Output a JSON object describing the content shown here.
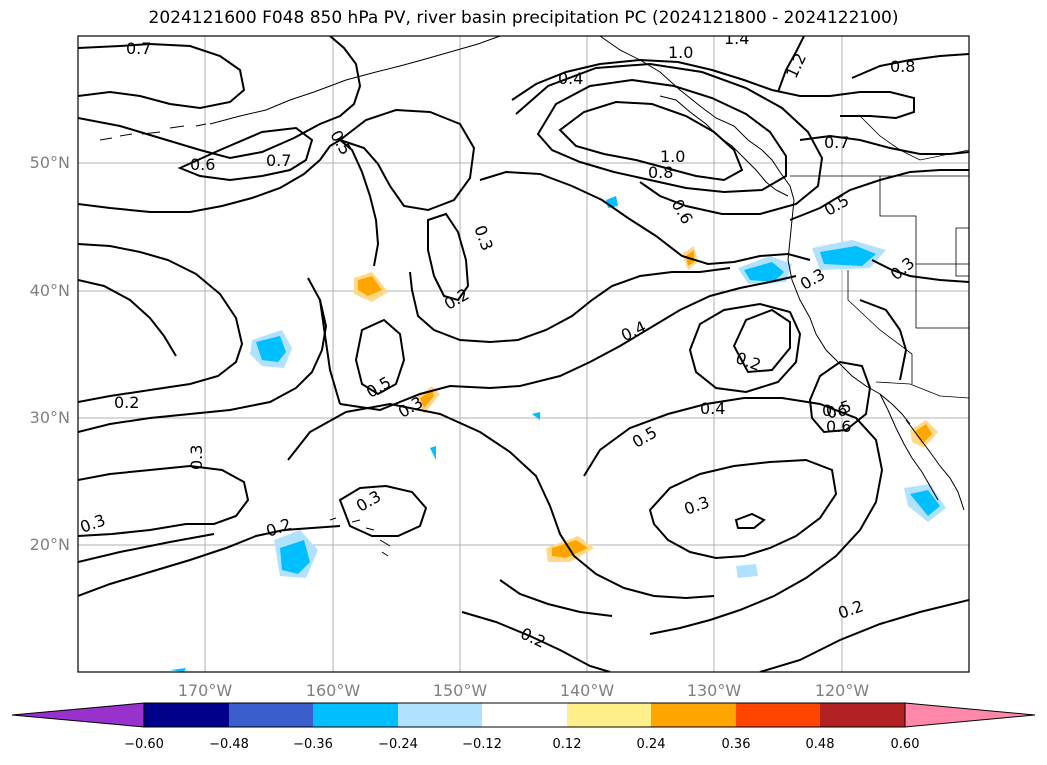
{
  "title": "2024121600 F048 850 hPa PV, river basin precipitation PC (2024121800 - 2024122100)",
  "lat_labels": [
    "50°N",
    "40°N",
    "30°N",
    "20°N"
  ],
  "lon_labels": [
    "170°W",
    "160°W",
    "150°W",
    "140°W",
    "130°W",
    "120°W"
  ],
  "contour_labels": [
    "0.7",
    "0.6",
    "0.7",
    "0.5",
    "0.4",
    "1.0",
    "1.4",
    "1.2",
    "0.8",
    "0.7",
    "1.0",
    "0.8",
    "0.6",
    "0.5",
    "0.3",
    "0.2",
    "0.3",
    "0.6",
    "0.3",
    "0.4",
    "0.2",
    "0.5",
    "0.3",
    "0.2",
    "0.4",
    "0.5",
    "0.6",
    "0.5",
    "0.3",
    "0.3",
    "0.3",
    "0.3",
    "0.2",
    "0.2",
    "0.2"
  ],
  "colorbar": {
    "ticks": [
      "−0.60",
      "−0.48",
      "−0.36",
      "−0.24",
      "−0.12",
      "0.12",
      "0.24",
      "0.36",
      "0.48",
      "0.60"
    ],
    "colors": [
      "#9932cc",
      "#00008b",
      "#3a5fcd",
      "#00bfff",
      "#b0e2ff",
      "#ffffff",
      "#fff08c",
      "#ffa500",
      "#ff4500",
      "#b22222",
      "#ff88aa"
    ]
  },
  "shading_colors": {
    "strong_negative": "#00bfff",
    "weak_negative": "#b0e2ff",
    "weak_positive": "#ffd88a",
    "strong_positive": "#ffa500"
  }
}
